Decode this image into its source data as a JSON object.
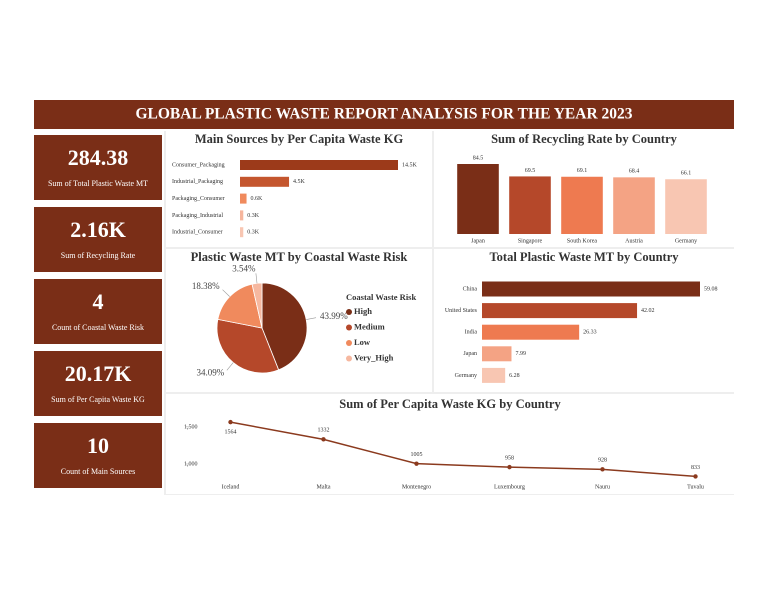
{
  "header": {
    "title": "GLOBAL PLASTIC WASTE REPORT ANALYSIS FOR THE YEAR 2023"
  },
  "kpis": [
    {
      "value": "284.38",
      "label": "Sum of Total Plastic Waste MT"
    },
    {
      "value": "2.16K",
      "label": "Sum of Recycling Rate"
    },
    {
      "value": "4",
      "label": "Count of Coastal Waste Risk"
    },
    {
      "value": "20.17K",
      "label": "Sum of Per Capita Waste KG"
    },
    {
      "value": "10",
      "label": "Count of Main Sources"
    }
  ],
  "chart_data": [
    {
      "type": "hbar",
      "title": "Main Sources by Per Capita Waste KG",
      "categories": [
        "Consumer_Packaging",
        "Industrial_Packaging",
        "Packaging_Consumer",
        "Packaging_Industrial",
        "Industrial_Consumer"
      ],
      "values": [
        14500,
        4500,
        600,
        300,
        300
      ],
      "value_labels": [
        "14.5K",
        "4.5K",
        "0.6K",
        "0.3K",
        "0.3K"
      ],
      "colors": [
        "#9c3a1a",
        "#c4562e",
        "#f08a5d",
        "#f6b59c",
        "#f8c6b2"
      ]
    },
    {
      "type": "bar",
      "title": "Sum of Recycling Rate by Country",
      "categories": [
        "Japan",
        "Singapore",
        "South Korea",
        "Austria",
        "Germany"
      ],
      "values": [
        84.5,
        69.5,
        69.1,
        68.4,
        66.1
      ],
      "colors": [
        "#7a2e17",
        "#b5482a",
        "#ee7a50",
        "#f4a384",
        "#f8c6b2"
      ]
    },
    {
      "type": "pie",
      "title": "Plastic Waste MT by Coastal Waste Risk",
      "legend_title": "Coastal Waste Risk",
      "categories": [
        "High",
        "Medium",
        "Low",
        "Very_High"
      ],
      "values": [
        43.99,
        34.09,
        18.38,
        3.54
      ],
      "value_labels": [
        "43.99%",
        "34.09%",
        "18.38%",
        "3.54%"
      ],
      "colors": [
        "#7a2e17",
        "#b5482a",
        "#f08a5d",
        "#f6b8a0"
      ]
    },
    {
      "type": "hbar",
      "title": "Total Plastic Waste MT by Country",
      "categories": [
        "China",
        "United States",
        "India",
        "Japan",
        "Germany"
      ],
      "values": [
        59.08,
        42.02,
        26.33,
        7.99,
        6.28
      ],
      "colors": [
        "#7a2e17",
        "#b5482a",
        "#ee7a50",
        "#f4a384",
        "#f8c6b2"
      ]
    },
    {
      "type": "line",
      "title": "Sum of Per Capita Waste KG by Country",
      "categories": [
        "Iceland",
        "Malta",
        "Montenegro",
        "Luxembourg",
        "Nauru",
        "Tuvalu"
      ],
      "values": [
        1564,
        1332,
        1005,
        958,
        928,
        833
      ],
      "ylim": [
        650,
        1660
      ],
      "yticks": [
        {
          "value": 1500,
          "label": "1,500"
        },
        {
          "value": 1000,
          "label": "1,000"
        }
      ],
      "color": "#8b3a1e"
    }
  ]
}
